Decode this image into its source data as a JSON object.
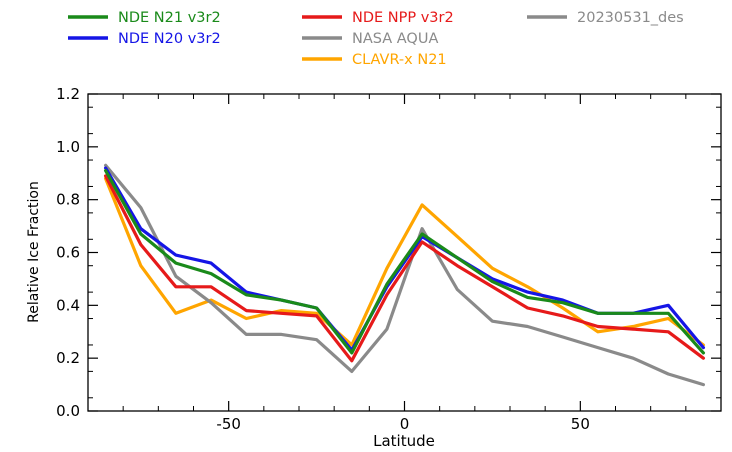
{
  "chart_data": {
    "type": "line",
    "xlabel": "Latitude",
    "ylabel": "Relative Ice Fraction",
    "xlim": [
      -90,
      90
    ],
    "ylim": [
      0.0,
      1.2
    ],
    "xticks": [
      -50,
      0,
      50
    ],
    "xtick_labels": [
      "-50",
      "0",
      "50"
    ],
    "yticks": [
      0.0,
      0.2,
      0.4,
      0.6,
      0.8,
      1.0,
      1.2
    ],
    "ytick_labels": [
      "0.0",
      "0.2",
      "0.4",
      "0.6",
      "0.8",
      "1.0",
      "1.2"
    ],
    "grid": false,
    "legend_position": "top",
    "series": [
      {
        "name": "NDE N21 v3r2",
        "color": "#1a8a1a",
        "x": [
          -85,
          -75,
          -65,
          -55,
          -45,
          -35,
          -25,
          -15,
          -5,
          5,
          15,
          25,
          35,
          45,
          55,
          65,
          75,
          85
        ],
        "y": [
          0.91,
          0.67,
          0.56,
          0.52,
          0.44,
          0.42,
          0.39,
          0.22,
          0.48,
          0.67,
          0.58,
          0.49,
          0.43,
          0.41,
          0.37,
          0.37,
          0.37,
          0.22
        ]
      },
      {
        "name": "NDE N20 v3r2",
        "color": "#1515e6",
        "x": [
          -85,
          -75,
          -65,
          -55,
          -45,
          -35,
          -25,
          -15,
          -5,
          5,
          15,
          25,
          35,
          45,
          55,
          65,
          75,
          85
        ],
        "y": [
          0.92,
          0.69,
          0.59,
          0.56,
          0.45,
          0.42,
          0.39,
          0.23,
          0.47,
          0.66,
          0.58,
          0.5,
          0.45,
          0.42,
          0.37,
          0.37,
          0.4,
          0.24
        ]
      },
      {
        "name": "NDE NPP v3r2",
        "color": "#e61a1a",
        "x": [
          -85,
          -75,
          -65,
          -55,
          -45,
          -35,
          -25,
          -15,
          -5,
          5,
          15,
          25,
          35,
          45,
          55,
          65,
          75,
          85
        ],
        "y": [
          0.89,
          0.63,
          0.47,
          0.47,
          0.38,
          0.37,
          0.36,
          0.19,
          0.44,
          0.64,
          0.55,
          0.47,
          0.39,
          0.36,
          0.32,
          0.31,
          0.3,
          0.2
        ]
      },
      {
        "name": "NASA AQUA",
        "color": "#8a8a8a",
        "x": [
          -85,
          -75,
          -65,
          -55,
          -45,
          -35,
          -25,
          -15,
          -5,
          5,
          15,
          25,
          35,
          45,
          55,
          65,
          75,
          85
        ],
        "y": [
          0.93,
          0.77,
          0.51,
          0.41,
          0.29,
          0.29,
          0.27,
          0.15,
          0.31,
          0.69,
          0.46,
          0.34,
          0.32,
          0.28,
          0.24,
          0.2,
          0.14,
          0.1
        ]
      },
      {
        "name": "CLAVR-x N21",
        "color": "#ffa500",
        "x": [
          -85,
          -75,
          -65,
          -55,
          -45,
          -35,
          -25,
          -15,
          -5,
          5,
          15,
          25,
          35,
          45,
          55,
          65,
          75,
          85
        ],
        "y": [
          0.88,
          0.55,
          0.37,
          0.42,
          0.35,
          0.38,
          0.37,
          0.25,
          0.54,
          0.78,
          0.66,
          0.54,
          0.47,
          0.39,
          0.3,
          0.32,
          0.35,
          0.25
        ]
      },
      {
        "name": "20230531_des",
        "color": "#8a8a8a",
        "x": [],
        "y": []
      }
    ]
  }
}
